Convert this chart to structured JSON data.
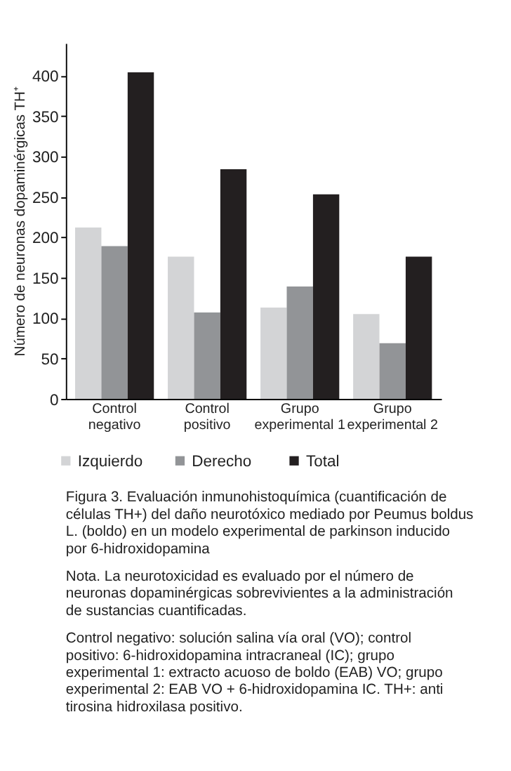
{
  "chart_data": {
    "type": "bar",
    "ylabel": "Número de neuronas dopaminérgicas TH⁺",
    "categories": [
      "Control negativo",
      "Control positivo",
      "Grupo experimental 1",
      "Grupo experimental 2"
    ],
    "series": [
      {
        "name": "Izquierdo",
        "color": "#d3d4d6",
        "values": [
          212,
          176,
          113,
          105
        ]
      },
      {
        "name": "Derecho",
        "color": "#929497",
        "values": [
          189,
          107,
          139,
          69
        ]
      },
      {
        "name": "Total",
        "color": "#231f20",
        "values": [
          404,
          284,
          253,
          176
        ]
      }
    ],
    "ylim": [
      0,
      440
    ],
    "yticks": [
      0,
      50,
      100,
      150,
      200,
      250,
      300,
      350,
      400
    ],
    "grid": false,
    "legend": "bottom",
    "annotations": [
      "Figura 3. Evaluación inmunohistoquímica (cuantificación de células TH+) del daño neurotóxico mediado por Peumus boldus L. (boldo) en un modelo experimental de parkinson inducido por 6-hidroxidopamina",
      "Nota. La neurotoxicidad es evaluado por el número de neuronas dopaminérgicas sobrevivientes a la administración de sustancias cuantificadas.",
      "Control negativo: solución salina vía oral (VO); control positivo: 6-hidroxidopamina intracraneal (IC); grupo experimental 1: extracto acuoso de boldo (EAB) VO; grupo experimental 2: EAB VO + 6-hidroxidopamina IC. TH+: anti tirosina hidroxilasa positivo."
    ]
  }
}
